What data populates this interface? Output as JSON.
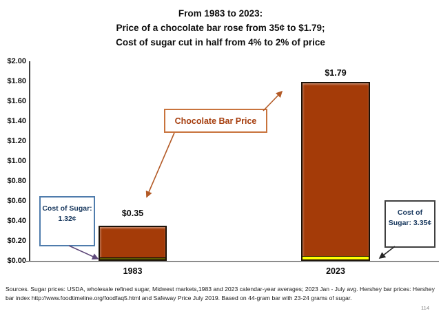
{
  "title": {
    "line1": "From 1983 to 2023:",
    "line2": "Price of a chocolate bar rose from 35¢ to $1.79;",
    "line3": "Cost of sugar cut in half from 4% to 2% of price"
  },
  "chart_data": {
    "type": "bar",
    "stacked": true,
    "title": "From 1983 to 2023: Price of a chocolate bar rose from 35¢ to $1.79; Cost of sugar cut in half from 4% to 2% of price",
    "categories": [
      "1983",
      "2023"
    ],
    "series": [
      {
        "name": "Cost of sugar",
        "values": [
          0.0132,
          0.0335
        ],
        "value_labels": [
          "1.32¢",
          "3.35¢"
        ],
        "colors": [
          "#5b5b00",
          "#ffff00"
        ]
      },
      {
        "name": "Chocolate bar price",
        "values": [
          0.3368,
          1.7565
        ],
        "color": "#a43b08"
      }
    ],
    "totals": [
      0.35,
      1.79
    ],
    "bar_value_labels": [
      "$0.35",
      "$1.79"
    ],
    "xlabel": "",
    "ylabel": "",
    "ylim": [
      0,
      2
    ],
    "ytick_step": 0.2,
    "yticks": [
      "$2.00",
      "$1.80",
      "$1.60",
      "$1.40",
      "$1.20",
      "$1.00",
      "$0.80",
      "$0.60",
      "$0.40",
      "$0.20",
      "$0.00"
    ],
    "gridlines": false,
    "legend": false
  },
  "annotations": {
    "chocolate": {
      "label": "Chocolate Bar Price",
      "border_color": "#c8733c",
      "text_color": "#a63e0e",
      "arrow_color": "#b35a26"
    },
    "sugar_1983": {
      "line1": "Cost of Sugar:",
      "line2": "1.32¢",
      "border_color": "#4f7cac",
      "text_color": "#17375d",
      "arrow_color": "#5f497a"
    },
    "sugar_2023": {
      "line1": "Cost of",
      "line2": "Sugar: 3.35¢",
      "border_color": "#404040",
      "text_color": "#17375d",
      "arrow_color": "#262626"
    }
  },
  "footer": {
    "sources_line1": "Sources.  Sugar prices: USDA, wholesale refined sugar, Midwest markets,1983 and 2023 calendar-year averages;  2023 Jan - July avg. Hershey bar prices:  Hershey",
    "sources_line2": "bar index   http://www.foodtimeline.org/foodfaq5.html and Safeway Price July 2019.  Based on 44-gram bar with 23-24 grams of sugar.",
    "page_number": "114"
  }
}
